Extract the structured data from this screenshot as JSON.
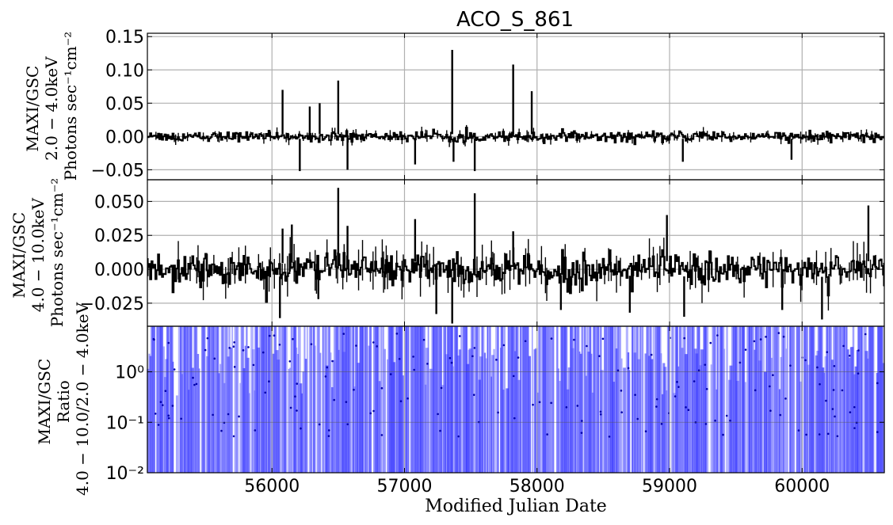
{
  "chart_data": {
    "type": "line",
    "title": "ACO_S_861",
    "xlabel": "Modified Julian Date",
    "xlim": [
      55060,
      60620
    ],
    "x_ticks": [
      56000,
      57000,
      58000,
      59000,
      60000
    ],
    "x_tick_labels": [
      "56000",
      "57000",
      "58000",
      "59000",
      "60000"
    ],
    "grid": true,
    "panels": [
      {
        "id": "soft",
        "ylabel_lines": [
          "MAXI/GSC",
          "2.0 − 4.0keV",
          "Photons sec⁻¹cm⁻²"
        ],
        "scale": "linear",
        "ylim": [
          -0.065,
          0.155
        ],
        "y_ticks": [
          0.15,
          0.1,
          0.05,
          0.0,
          -0.05
        ],
        "y_tick_labels": [
          "0.15",
          "0.10",
          "0.05",
          "0.00",
          "−0.05"
        ],
        "color": "#000000",
        "series": [
          {
            "noise_sd": 0.0035,
            "spikes": [
              {
                "x": 56080,
                "v": 0.07
              },
              {
                "x": 56210,
                "v": -0.052
              },
              {
                "x": 56285,
                "v": 0.045
              },
              {
                "x": 56360,
                "v": 0.05
              },
              {
                "x": 56500,
                "v": 0.084
              },
              {
                "x": 56570,
                "v": -0.05
              },
              {
                "x": 57080,
                "v": -0.042
              },
              {
                "x": 57360,
                "v": 0.13
              },
              {
                "x": 57370,
                "v": -0.038
              },
              {
                "x": 57530,
                "v": -0.052
              },
              {
                "x": 57820,
                "v": 0.108
              },
              {
                "x": 57960,
                "v": 0.068
              },
              {
                "x": 59100,
                "v": -0.038
              },
              {
                "x": 59920,
                "v": -0.035
              }
            ]
          }
        ]
      },
      {
        "id": "hard",
        "ylabel_lines": [
          "MAXI/GSC",
          "4.0 − 10.0keV",
          "Photons sec⁻¹cm⁻²"
        ],
        "scale": "linear",
        "ylim": [
          -0.042,
          0.066
        ],
        "y_ticks": [
          0.05,
          0.025,
          0.0,
          -0.025
        ],
        "y_tick_labels": [
          "0.050",
          "0.025",
          "0.000",
          "−0.025"
        ],
        "color": "#000000",
        "series": [
          {
            "noise_sd": 0.006,
            "spikes": [
              {
                "x": 56060,
                "v": -0.036
              },
              {
                "x": 56080,
                "v": 0.03
              },
              {
                "x": 56150,
                "v": 0.033
              },
              {
                "x": 56350,
                "v": -0.022
              },
              {
                "x": 56500,
                "v": 0.06
              },
              {
                "x": 56570,
                "v": 0.032
              },
              {
                "x": 57080,
                "v": 0.037
              },
              {
                "x": 57240,
                "v": -0.033
              },
              {
                "x": 57360,
                "v": -0.04
              },
              {
                "x": 57530,
                "v": 0.056
              },
              {
                "x": 57820,
                "v": 0.028
              },
              {
                "x": 58180,
                "v": -0.03
              },
              {
                "x": 58700,
                "v": -0.032
              },
              {
                "x": 58980,
                "v": 0.04
              },
              {
                "x": 59110,
                "v": -0.035
              },
              {
                "x": 59850,
                "v": -0.03
              },
              {
                "x": 60150,
                "v": -0.037
              },
              {
                "x": 60500,
                "v": 0.047
              }
            ]
          }
        ]
      },
      {
        "id": "ratio",
        "ylabel_lines": [
          "MAXI/GSC",
          "Ratio",
          "4.0 − 10.0/2.0 − 4.0keV"
        ],
        "scale": "log",
        "ylim": [
          0.01,
          8.0
        ],
        "y_ticks": [
          1,
          0.1,
          0.01
        ],
        "y_tick_labels": [
          "10⁰",
          "10⁻¹",
          "10⁻²"
        ],
        "color": "#3333ff",
        "series": [
          {
            "bars_from": 0.01,
            "typical_top": 8.0,
            "typical_point_range": [
              0.05,
              6.0
            ]
          }
        ]
      }
    ]
  }
}
